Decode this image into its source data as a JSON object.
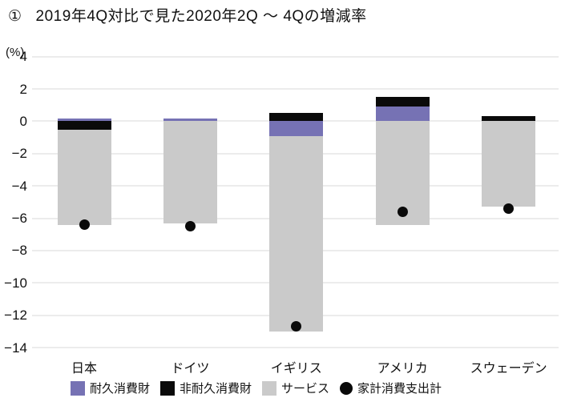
{
  "chart_data": {
    "type": "bar",
    "stacked": true,
    "title_prefix": "①",
    "title": "2019年4Q対比で見た2020年2Q ～ 4Qの増減率",
    "unit_label": "(%)",
    "categories": [
      "日本",
      "ドイツ",
      "イギリス",
      "アメリカ",
      "スウェーデン"
    ],
    "series": [
      {
        "name": "耐久消費財",
        "color": "#7672b4",
        "values": [
          0.15,
          0.15,
          -0.9,
          0.9,
          0
        ]
      },
      {
        "name": "非耐久消費財",
        "color": "#0a0a0a",
        "values": [
          -0.5,
          0,
          0.5,
          0.6,
          0.3
        ]
      },
      {
        "name": "サービス",
        "color": "#cacaca",
        "values": [
          -5.9,
          -6.3,
          -12.1,
          -6.4,
          -5.3
        ]
      }
    ],
    "dot_series": {
      "name": "家計消費支出計",
      "color": "#0a0a0a",
      "values": [
        -6.4,
        -6.5,
        -12.7,
        -5.6,
        -5.4
      ]
    },
    "ylim": [
      -14,
      4
    ],
    "yticks": [
      4,
      2,
      0,
      -2,
      -4,
      -6,
      -8,
      -10,
      -12,
      -14
    ],
    "grid": true,
    "grid_color": "#ececec",
    "legend_position": "bottom"
  }
}
